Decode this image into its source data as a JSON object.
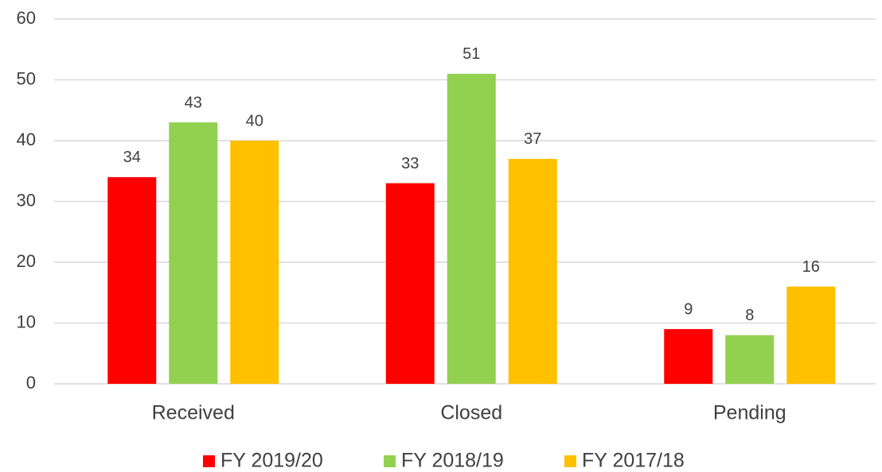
{
  "chart_data": {
    "type": "bar",
    "categories": [
      "Received",
      "Closed",
      "Pending"
    ],
    "series": [
      {
        "name": "FY 2019/20",
        "color": "#ff0000",
        "values": [
          34,
          33,
          9
        ]
      },
      {
        "name": "FY 2018/19",
        "color": "#92d050",
        "values": [
          43,
          51,
          8
        ]
      },
      {
        "name": "FY 2017/18",
        "color": "#ffc000",
        "values": [
          40,
          37,
          16
        ]
      }
    ],
    "ylim": [
      0,
      60
    ],
    "yticks": [
      0,
      10,
      20,
      30,
      40,
      50,
      60
    ],
    "grid": true,
    "legend": "bottom"
  }
}
